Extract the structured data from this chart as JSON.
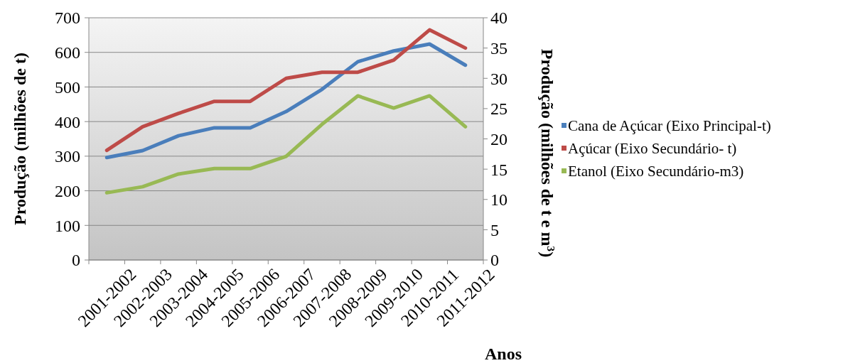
{
  "chart_data": {
    "type": "line",
    "xlabel": "Anos",
    "ylabel": "Produção (milhões de t)",
    "y2label": "Produção (milhões de t e m$^{3}$)",
    "categories": [
      "2001-2002",
      "2002-2003",
      "2003-2004",
      "2004-2005",
      "2005-2006",
      "2006-2007",
      "2007-2008",
      "2008-2009",
      "2009-2010",
      "2010-2011",
      "2011-2012"
    ],
    "series": [
      {
        "name": "Cana de Açúcar (Eixo Principal-t)",
        "color": "#4a7ebb",
        "values": [
          296,
          316,
          359,
          382,
          382,
          429,
          493,
          573,
          604,
          624,
          563
        ]
      },
      {
        "name": "Açúcar (Eixo Secundário- t)",
        "color": "#be4b48",
        "axis": "y2",
        "values": [
          18.1,
          22,
          24.2,
          26.2,
          26.2,
          30,
          31,
          31,
          33,
          38,
          35
        ]
      },
      {
        "name": "Etanol (Eixo Secundário-m3)",
        "color": "#98b954",
        "axis": "y2",
        "values": [
          11.1,
          12.1,
          14.2,
          15.1,
          15.1,
          17.1,
          22.4,
          27.1,
          25.1,
          27.1,
          22
        ]
      }
    ],
    "ylim": [
      0,
      700
    ],
    "yticks": [
      0,
      100,
      200,
      300,
      400,
      500,
      600,
      700
    ],
    "y2lim": [
      0,
      40
    ],
    "y2ticks": [
      0,
      5,
      10,
      15,
      20,
      25,
      30,
      35,
      40
    ],
    "grid": "y",
    "legend": "right",
    "marker": "none",
    "line_style": "solid"
  }
}
